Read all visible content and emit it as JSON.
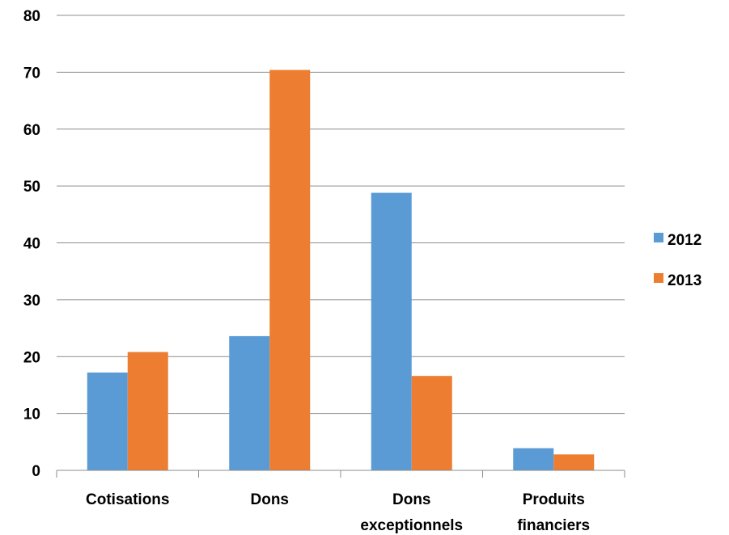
{
  "chart_data": {
    "type": "bar",
    "categories": [
      [
        "Cotisations"
      ],
      [
        "Dons"
      ],
      [
        "Dons",
        "exceptionnels"
      ],
      [
        "Produits",
        "financiers"
      ]
    ],
    "series": [
      {
        "name": "2012",
        "color": "#5B9BD5",
        "values": [
          17.2,
          23.6,
          48.8,
          3.9
        ]
      },
      {
        "name": "2013",
        "color": "#ED7D31",
        "values": [
          20.8,
          70.4,
          16.6,
          2.8
        ]
      }
    ],
    "ylim": [
      0,
      80
    ],
    "yticks": [
      0,
      10,
      20,
      30,
      40,
      50,
      60,
      70,
      80
    ],
    "grid": true,
    "legend_position": "right"
  }
}
